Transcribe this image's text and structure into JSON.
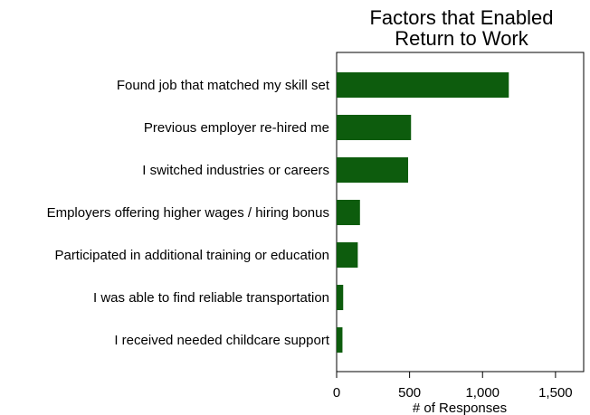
{
  "chart_data": {
    "type": "bar",
    "orientation": "horizontal",
    "title": [
      "Factors that Enabled",
      "Return to Work"
    ],
    "xlabel": "# of Responses",
    "ylabel": "",
    "categories": [
      "Found job that matched my skill set",
      "Previous employer re-hired me",
      "I switched industries or careers",
      "Employers offering higher wages / hiring bonus",
      "Participated in additional training or education",
      "I was able to find reliable transportation",
      "I received needed childcare support"
    ],
    "values": [
      1180,
      510,
      490,
      160,
      145,
      45,
      40
    ],
    "xlim": [
      0,
      1600
    ],
    "xticks": [
      0,
      500,
      1000,
      1500
    ],
    "xtick_labels": [
      "0",
      "500",
      "1,000",
      "1,500"
    ],
    "grid": false,
    "bar_color": "#0d5c0d"
  }
}
